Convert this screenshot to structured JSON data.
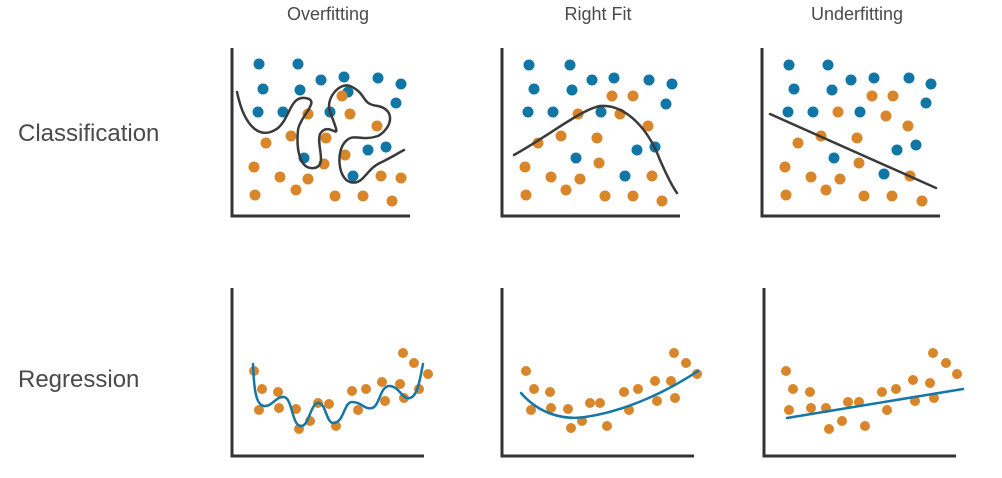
{
  "columns": [
    "Overfitting",
    "Right Fit",
    "Underfitting"
  ],
  "rows": [
    "Classification",
    "Regression"
  ],
  "colors": {
    "blue_class": "#0f76a6",
    "orange_class": "#d9862b",
    "boundary": "#3a3a3a",
    "regression_line": "#1577a8",
    "axis": "#333333"
  },
  "icons": {
    "classification_scatter": "two-class scatter with decision boundary",
    "regression_scatter": "scatter with fitted curve"
  }
}
